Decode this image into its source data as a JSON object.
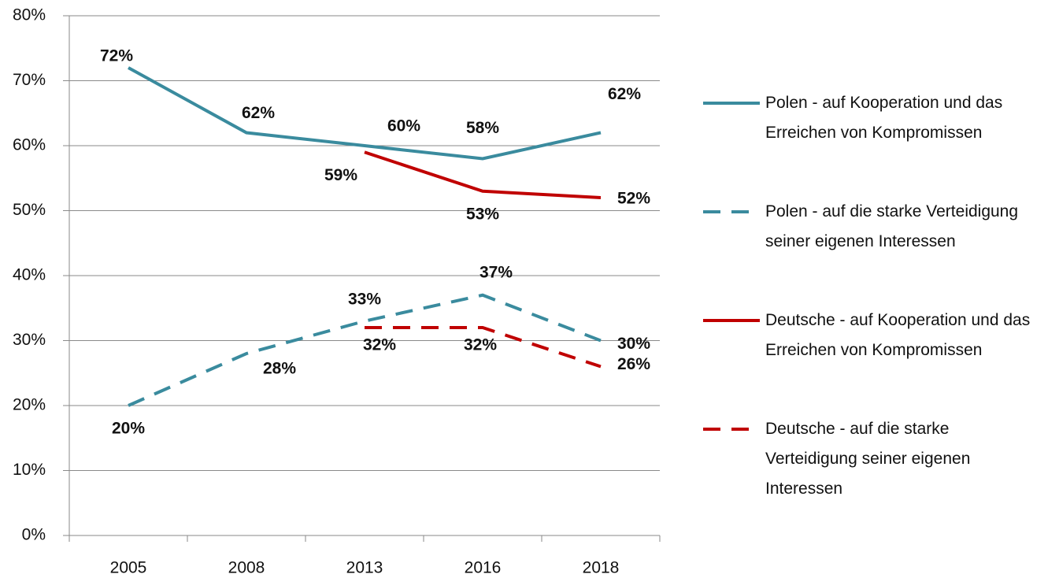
{
  "chart_data": {
    "type": "line",
    "categories": [
      "2005",
      "2008",
      "2013",
      "2016",
      "2018"
    ],
    "series": [
      {
        "name": "Polen - auf Kooperation und das Erreichen von Kompromissen",
        "color": "#3a8b9e",
        "dash": false,
        "values": [
          72,
          62,
          60,
          58,
          62
        ],
        "value_labels": [
          "72%",
          "62%",
          "60%",
          "58%",
          "62%"
        ]
      },
      {
        "name": "Polen - auf die starke Verteidigung seiner eigenen Interessen",
        "color": "#3a8b9e",
        "dash": true,
        "values": [
          20,
          28,
          33,
          37,
          30
        ],
        "value_labels": [
          "20%",
          "28%",
          "33%",
          "37%",
          "30%"
        ]
      },
      {
        "name": "Deutsche - auf Kooperation und das Erreichen von Kompromissen",
        "color": "#c00000",
        "dash": false,
        "values": [
          null,
          null,
          59,
          53,
          52
        ],
        "value_labels": [
          null,
          null,
          "59%",
          "53%",
          "52%"
        ]
      },
      {
        "name": "Deutsche - auf die starke Verteidigung seiner eigenen Interessen",
        "color": "#c00000",
        "dash": true,
        "values": [
          null,
          null,
          32,
          32,
          26
        ],
        "value_labels": [
          null,
          null,
          "32%",
          "32%",
          "26%"
        ]
      }
    ],
    "ylim": [
      0,
      80
    ],
    "yticks": [
      {
        "value": 0,
        "label": "0%"
      },
      {
        "value": 10,
        "label": "10%"
      },
      {
        "value": 20,
        "label": "20%"
      },
      {
        "value": 30,
        "label": "30%"
      },
      {
        "value": 40,
        "label": "40%"
      },
      {
        "value": 50,
        "label": "50%"
      },
      {
        "value": 60,
        "label": "60%"
      },
      {
        "value": 70,
        "label": "70%"
      },
      {
        "value": 80,
        "label": "80%"
      }
    ],
    "grid": true,
    "legend": "right"
  }
}
